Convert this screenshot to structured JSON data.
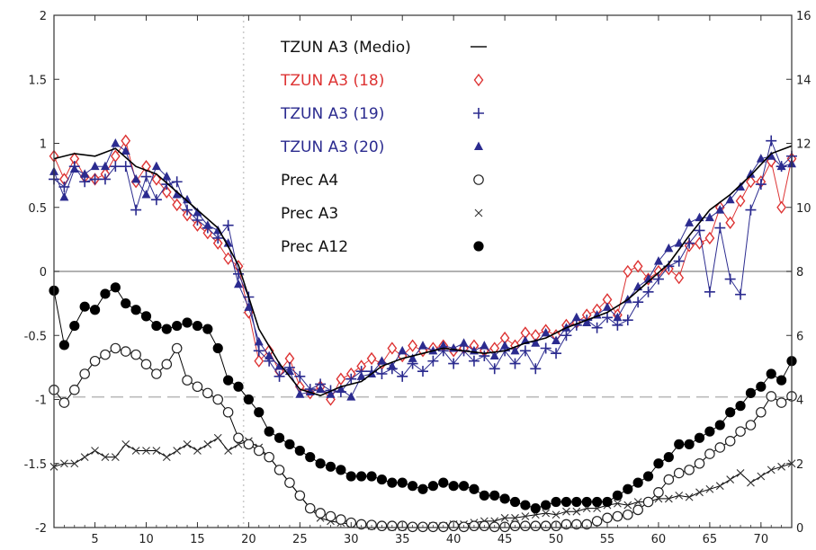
{
  "chart_data": {
    "type": "line",
    "title": "",
    "xlabel": "",
    "ylabel": "",
    "xlim": [
      1,
      73
    ],
    "ylim": [
      -2,
      2
    ],
    "y2lim": [
      0,
      16
    ],
    "x_ticks": [
      5,
      10,
      15,
      20,
      25,
      30,
      35,
      40,
      45,
      50,
      55,
      60,
      65,
      70
    ],
    "y_ticks": [
      -2,
      -1.5,
      -1,
      -0.5,
      0,
      0.5,
      1,
      1.5,
      2
    ],
    "y_tick_labels": [
      "-2",
      "-1.5",
      "-1",
      "-0.5",
      "0",
      "0.5",
      "1",
      "1.5",
      "2"
    ],
    "y2_ticks": [
      0,
      2,
      4,
      6,
      8,
      10,
      12,
      14,
      16
    ],
    "y2_tick_labels": [
      "0",
      "2",
      "4",
      "6",
      "8",
      "10",
      "12",
      "14",
      "16"
    ],
    "reference_lines": [
      {
        "axis": "left",
        "y": 0,
        "style": "solid",
        "color": "#999999"
      },
      {
        "axis": "left",
        "y": -0.98,
        "style": "dashed",
        "color": "#bbbbbb"
      },
      {
        "axis": "x",
        "x": 19.5,
        "style": "dotted",
        "color": "#cccccc"
      }
    ],
    "legend": {
      "position": "top-center",
      "entries": [
        {
          "label": "TZUN A3 (Medio)",
          "color": "#000000",
          "marker": "line"
        },
        {
          "label": "TZUN A3 (18)",
          "color": "#dd3333",
          "marker": "diamond"
        },
        {
          "label": "TZUN A3 (19)",
          "color": "#2b2b8f",
          "marker": "plus"
        },
        {
          "label": "TZUN A3 (20)",
          "color": "#2b2b8f",
          "marker": "triangle"
        },
        {
          "label": "Prec A4",
          "color": "#000000",
          "marker": "circle-open"
        },
        {
          "label": "Prec A3",
          "color": "#000000",
          "marker": "cross"
        },
        {
          "label": "Prec A12",
          "color": "#000000",
          "marker": "circle-filled"
        }
      ]
    },
    "series": [
      {
        "name": "TZUN A3 (Medio)",
        "axis": "left",
        "color": "#000000",
        "marker": "none",
        "x": [
          1,
          3,
          5,
          7,
          9,
          11,
          13,
          15,
          17,
          19,
          21,
          23,
          25,
          27,
          29,
          31,
          33,
          35,
          37,
          39,
          41,
          43,
          45,
          47,
          49,
          51,
          53,
          55,
          57,
          59,
          61,
          63,
          65,
          67,
          69,
          71,
          73
        ],
        "y": [
          0.88,
          0.92,
          0.9,
          0.96,
          0.82,
          0.76,
          0.62,
          0.48,
          0.34,
          0.05,
          -0.45,
          -0.72,
          -0.92,
          -0.97,
          -0.9,
          -0.86,
          -0.74,
          -0.68,
          -0.64,
          -0.6,
          -0.62,
          -0.64,
          -0.62,
          -0.56,
          -0.52,
          -0.44,
          -0.38,
          -0.32,
          -0.22,
          -0.08,
          0.06,
          0.28,
          0.48,
          0.6,
          0.75,
          0.92,
          0.98
        ]
      },
      {
        "name": "TZUN A3 (18)",
        "axis": "left",
        "color": "#dd3333",
        "marker": "diamond",
        "x": [
          1,
          2,
          3,
          4,
          5,
          6,
          7,
          8,
          9,
          10,
          11,
          12,
          13,
          14,
          15,
          16,
          17,
          18,
          19,
          20,
          21,
          22,
          23,
          24,
          25,
          26,
          27,
          28,
          29,
          30,
          31,
          32,
          33,
          34,
          35,
          36,
          37,
          38,
          39,
          40,
          41,
          42,
          43,
          44,
          45,
          46,
          47,
          48,
          49,
          50,
          51,
          52,
          53,
          54,
          55,
          56,
          57,
          58,
          59,
          60,
          61,
          62,
          63,
          64,
          65,
          66,
          67,
          68,
          69,
          70,
          71,
          72,
          73
        ],
        "y": [
          0.9,
          0.72,
          0.88,
          0.74,
          0.72,
          0.76,
          0.9,
          1.02,
          0.7,
          0.82,
          0.72,
          0.62,
          0.52,
          0.44,
          0.36,
          0.3,
          0.22,
          0.1,
          0.04,
          -0.32,
          -0.7,
          -0.62,
          -0.78,
          -0.68,
          -0.9,
          -0.95,
          -0.9,
          -1.0,
          -0.84,
          -0.8,
          -0.74,
          -0.68,
          -0.72,
          -0.6,
          -0.66,
          -0.58,
          -0.62,
          -0.6,
          -0.58,
          -0.62,
          -0.6,
          -0.58,
          -0.62,
          -0.6,
          -0.52,
          -0.58,
          -0.48,
          -0.5,
          -0.46,
          -0.5,
          -0.42,
          -0.4,
          -0.34,
          -0.3,
          -0.22,
          -0.34,
          0.0,
          0.04,
          -0.06,
          0.0,
          0.02,
          -0.05,
          0.2,
          0.22,
          0.26,
          0.5,
          0.38,
          0.55,
          0.7,
          0.7,
          0.86,
          0.5,
          0.88
        ]
      },
      {
        "name": "TZUN A3 (19)",
        "axis": "left",
        "color": "#2b2b8f",
        "marker": "plus",
        "x": [
          1,
          2,
          3,
          4,
          5,
          6,
          7,
          8,
          9,
          10,
          11,
          12,
          13,
          14,
          15,
          16,
          17,
          18,
          19,
          20,
          21,
          22,
          23,
          24,
          25,
          26,
          27,
          28,
          29,
          30,
          31,
          32,
          33,
          34,
          35,
          36,
          37,
          38,
          39,
          40,
          41,
          42,
          43,
          44,
          45,
          46,
          47,
          48,
          49,
          50,
          51,
          52,
          53,
          54,
          55,
          56,
          57,
          58,
          59,
          60,
          61,
          62,
          63,
          64,
          65,
          66,
          67,
          68,
          69,
          70,
          71,
          72,
          73
        ],
        "y": [
          0.72,
          0.66,
          0.82,
          0.7,
          0.72,
          0.72,
          0.82,
          0.82,
          0.48,
          0.74,
          0.56,
          0.68,
          0.7,
          0.48,
          0.4,
          0.34,
          0.26,
          0.36,
          -0.02,
          -0.2,
          -0.62,
          -0.7,
          -0.82,
          -0.75,
          -0.82,
          -0.92,
          -0.88,
          -0.93,
          -0.94,
          -0.84,
          -0.78,
          -0.78,
          -0.8,
          -0.76,
          -0.82,
          -0.72,
          -0.78,
          -0.7,
          -0.62,
          -0.72,
          -0.62,
          -0.7,
          -0.66,
          -0.76,
          -0.62,
          -0.72,
          -0.62,
          -0.76,
          -0.6,
          -0.64,
          -0.5,
          -0.42,
          -0.38,
          -0.44,
          -0.36,
          -0.42,
          -0.38,
          -0.24,
          -0.16,
          -0.06,
          0.04,
          0.08,
          0.22,
          0.32,
          -0.16,
          0.34,
          -0.06,
          -0.18,
          0.48,
          0.68,
          1.02,
          0.82,
          0.9
        ]
      },
      {
        "name": "TZUN A3 (20)",
        "axis": "left",
        "color": "#2b2b8f",
        "marker": "triangle",
        "x": [
          1,
          2,
          3,
          4,
          5,
          6,
          7,
          8,
          9,
          10,
          11,
          12,
          13,
          14,
          15,
          16,
          17,
          18,
          19,
          20,
          21,
          22,
          23,
          24,
          25,
          26,
          27,
          28,
          29,
          30,
          31,
          32,
          33,
          34,
          35,
          36,
          37,
          38,
          39,
          40,
          41,
          42,
          43,
          44,
          45,
          46,
          47,
          48,
          49,
          50,
          51,
          52,
          53,
          54,
          55,
          56,
          57,
          58,
          59,
          60,
          61,
          62,
          63,
          64,
          65,
          66,
          67,
          68,
          69,
          70,
          71,
          72,
          73
        ],
        "y": [
          0.78,
          0.58,
          0.8,
          0.76,
          0.82,
          0.82,
          1.0,
          0.94,
          0.72,
          0.6,
          0.82,
          0.74,
          0.6,
          0.56,
          0.46,
          0.36,
          0.32,
          0.22,
          -0.1,
          -0.28,
          -0.55,
          -0.66,
          -0.74,
          -0.78,
          -0.96,
          -0.94,
          -0.92,
          -0.96,
          -0.92,
          -0.98,
          -0.82,
          -0.8,
          -0.7,
          -0.74,
          -0.62,
          -0.68,
          -0.58,
          -0.62,
          -0.58,
          -0.6,
          -0.56,
          -0.62,
          -0.58,
          -0.66,
          -0.58,
          -0.62,
          -0.54,
          -0.56,
          -0.48,
          -0.54,
          -0.44,
          -0.36,
          -0.4,
          -0.34,
          -0.28,
          -0.36,
          -0.22,
          -0.12,
          -0.06,
          0.08,
          0.18,
          0.22,
          0.38,
          0.42,
          0.42,
          0.48,
          0.56,
          0.66,
          0.76,
          0.88,
          0.9,
          0.82,
          0.84
        ]
      },
      {
        "name": "Prec A4",
        "axis": "right",
        "color": "#000000",
        "marker": "circle-open",
        "x": [
          1,
          2,
          3,
          4,
          5,
          6,
          7,
          8,
          9,
          10,
          11,
          12,
          13,
          14,
          15,
          16,
          17,
          18,
          19,
          20,
          21,
          22,
          23,
          24,
          25,
          26,
          27,
          28,
          29,
          30,
          31,
          32,
          33,
          34,
          35,
          36,
          37,
          38,
          39,
          40,
          41,
          42,
          43,
          44,
          45,
          46,
          47,
          48,
          49,
          50,
          51,
          52,
          53,
          54,
          55,
          56,
          57,
          58,
          59,
          60,
          61,
          62,
          63,
          64,
          65,
          66,
          67,
          68,
          69,
          70,
          71,
          72,
          73
        ],
        "y": [
          4.3,
          3.9,
          4.3,
          4.8,
          5.2,
          5.4,
          5.6,
          5.5,
          5.4,
          5.1,
          4.8,
          5.1,
          5.6,
          4.6,
          4.4,
          4.2,
          4.0,
          3.6,
          2.8,
          2.6,
          2.4,
          2.2,
          1.8,
          1.4,
          1.0,
          0.6,
          0.45,
          0.35,
          0.25,
          0.15,
          0.1,
          0.08,
          0.05,
          0.05,
          0.05,
          0.02,
          0.02,
          0.02,
          0.02,
          0.05,
          0.02,
          0.05,
          0.05,
          0.02,
          0.02,
          0.05,
          0.05,
          0.05,
          0.05,
          0.05,
          0.1,
          0.1,
          0.1,
          0.2,
          0.3,
          0.35,
          0.4,
          0.55,
          0.8,
          1.1,
          1.5,
          1.7,
          1.8,
          2.0,
          2.3,
          2.5,
          2.7,
          3.0,
          3.2,
          3.6,
          4.1,
          3.9,
          4.1
        ]
      },
      {
        "name": "Prec A3",
        "axis": "right",
        "color": "#000000",
        "marker": "cross",
        "x": [
          1,
          2,
          3,
          4,
          5,
          6,
          7,
          8,
          9,
          10,
          11,
          12,
          13,
          14,
          15,
          16,
          17,
          18,
          19,
          20,
          21,
          22,
          23,
          24,
          25,
          26,
          27,
          28,
          29,
          30,
          31,
          32,
          33,
          34,
          35,
          36,
          37,
          38,
          39,
          40,
          41,
          42,
          43,
          44,
          45,
          46,
          47,
          48,
          49,
          50,
          51,
          52,
          53,
          54,
          55,
          56,
          57,
          58,
          59,
          60,
          61,
          62,
          63,
          64,
          65,
          66,
          67,
          68,
          69,
          70,
          71,
          72,
          73
        ],
        "y": [
          1.9,
          2.0,
          2.0,
          2.2,
          2.4,
          2.2,
          2.2,
          2.6,
          2.4,
          2.4,
          2.4,
          2.2,
          2.4,
          2.6,
          2.4,
          2.6,
          2.8,
          2.4,
          2.6,
          2.7,
          2.5,
          2.2,
          1.8,
          1.4,
          1.0,
          0.6,
          0.3,
          0.2,
          0.15,
          0.1,
          0.1,
          0.05,
          0.05,
          0.02,
          0.02,
          0.02,
          0.02,
          0.05,
          0.05,
          0.1,
          0.1,
          0.15,
          0.2,
          0.2,
          0.3,
          0.3,
          0.35,
          0.4,
          0.45,
          0.4,
          0.5,
          0.5,
          0.6,
          0.6,
          0.7,
          0.75,
          0.7,
          0.8,
          0.8,
          0.9,
          0.9,
          1.0,
          0.95,
          1.1,
          1.2,
          1.3,
          1.5,
          1.7,
          1.4,
          1.6,
          1.8,
          1.9,
          2.0
        ]
      },
      {
        "name": "Prec A12",
        "axis": "right",
        "color": "#000000",
        "marker": "circle-filled",
        "x": [
          1,
          2,
          3,
          4,
          5,
          6,
          7,
          8,
          9,
          10,
          11,
          12,
          13,
          14,
          15,
          16,
          17,
          18,
          19,
          20,
          21,
          22,
          23,
          24,
          25,
          26,
          27,
          28,
          29,
          30,
          31,
          32,
          33,
          34,
          35,
          36,
          37,
          38,
          39,
          40,
          41,
          42,
          43,
          44,
          45,
          46,
          47,
          48,
          49,
          50,
          51,
          52,
          53,
          54,
          55,
          56,
          57,
          58,
          59,
          60,
          61,
          62,
          63,
          64,
          65,
          66,
          67,
          68,
          69,
          70,
          71,
          72,
          73
        ],
        "y": [
          7.4,
          5.7,
          6.3,
          6.9,
          6.8,
          7.3,
          7.5,
          7.0,
          6.8,
          6.6,
          6.3,
          6.2,
          6.3,
          6.4,
          6.3,
          6.2,
          5.6,
          4.6,
          4.4,
          4.0,
          3.6,
          3.0,
          2.8,
          2.6,
          2.4,
          2.2,
          2.0,
          1.9,
          1.8,
          1.6,
          1.6,
          1.6,
          1.5,
          1.4,
          1.4,
          1.3,
          1.2,
          1.3,
          1.4,
          1.3,
          1.3,
          1.2,
          1.0,
          1.0,
          0.9,
          0.8,
          0.7,
          0.6,
          0.7,
          0.8,
          0.8,
          0.8,
          0.8,
          0.8,
          0.8,
          1.0,
          1.2,
          1.4,
          1.6,
          2.0,
          2.2,
          2.6,
          2.6,
          2.8,
          3.0,
          3.2,
          3.6,
          3.8,
          4.2,
          4.4,
          4.8,
          4.6,
          5.2
        ]
      }
    ]
  }
}
